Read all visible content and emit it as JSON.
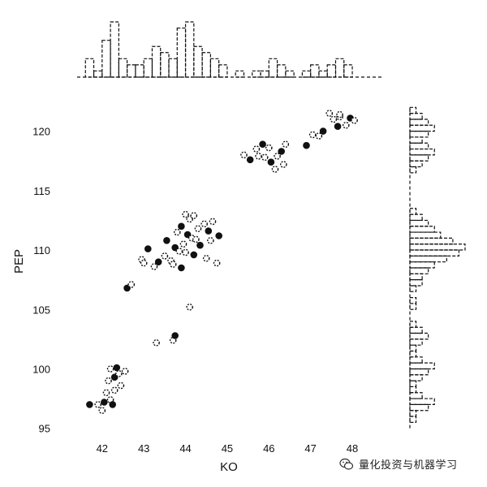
{
  "chart_data": {
    "type": "scatter",
    "title": "",
    "xlabel": "KO",
    "ylabel": "PEP",
    "xlim": [
      41.4,
      48.7
    ],
    "ylim": [
      94.5,
      122.5
    ],
    "xticks": [
      42,
      43,
      44,
      45,
      46,
      47,
      48
    ],
    "yticks": [
      95,
      100,
      105,
      110,
      115,
      120
    ],
    "grid": false,
    "points": [
      [
        41.7,
        97.0
      ],
      [
        41.9,
        97.0
      ],
      [
        42.0,
        96.5
      ],
      [
        42.05,
        97.2
      ],
      [
        42.1,
        98.0
      ],
      [
        42.2,
        97.4
      ],
      [
        42.25,
        97.0
      ],
      [
        42.3,
        98.2
      ],
      [
        42.15,
        99.0
      ],
      [
        42.3,
        99.3
      ],
      [
        42.4,
        99.6
      ],
      [
        42.2,
        100.0
      ],
      [
        42.35,
        100.1
      ],
      [
        42.55,
        99.8
      ],
      [
        42.45,
        98.6
      ],
      [
        42.6,
        106.8
      ],
      [
        42.7,
        107.1
      ],
      [
        42.95,
        109.2
      ],
      [
        43.1,
        110.1
      ],
      [
        43.0,
        108.9
      ],
      [
        43.25,
        108.6
      ],
      [
        43.35,
        109.0
      ],
      [
        43.3,
        102.2
      ],
      [
        43.7,
        102.4
      ],
      [
        43.75,
        102.8
      ],
      [
        44.1,
        105.2
      ],
      [
        43.5,
        109.5
      ],
      [
        43.55,
        110.8
      ],
      [
        43.65,
        109.1
      ],
      [
        43.7,
        108.8
      ],
      [
        43.75,
        110.2
      ],
      [
        43.8,
        111.5
      ],
      [
        43.85,
        109.9
      ],
      [
        43.9,
        112.0
      ],
      [
        43.95,
        110.5
      ],
      [
        44.0,
        109.8
      ],
      [
        44.05,
        111.3
      ],
      [
        44.1,
        112.6
      ],
      [
        44.15,
        111.0
      ],
      [
        44.2,
        109.6
      ],
      [
        44.25,
        110.9
      ],
      [
        44.3,
        111.8
      ],
      [
        44.35,
        110.4
      ],
      [
        44.45,
        112.2
      ],
      [
        44.5,
        109.3
      ],
      [
        44.55,
        111.6
      ],
      [
        44.65,
        112.4
      ],
      [
        44.75,
        108.9
      ],
      [
        44.8,
        111.2
      ],
      [
        44.0,
        113.0
      ],
      [
        44.2,
        112.9
      ],
      [
        43.9,
        108.5
      ],
      [
        44.6,
        110.8
      ],
      [
        45.4,
        118.0
      ],
      [
        45.55,
        117.6
      ],
      [
        45.7,
        118.5
      ],
      [
        45.75,
        117.9
      ],
      [
        45.85,
        118.9
      ],
      [
        45.9,
        117.8
      ],
      [
        46.0,
        118.6
      ],
      [
        46.05,
        117.4
      ],
      [
        46.15,
        116.8
      ],
      [
        46.2,
        117.9
      ],
      [
        46.3,
        118.3
      ],
      [
        46.35,
        117.2
      ],
      [
        46.4,
        118.9
      ],
      [
        46.9,
        118.8
      ],
      [
        47.05,
        119.7
      ],
      [
        47.2,
        119.6
      ],
      [
        47.3,
        120.0
      ],
      [
        47.45,
        121.5
      ],
      [
        47.55,
        121.0
      ],
      [
        47.65,
        120.4
      ],
      [
        47.7,
        121.2
      ],
      [
        47.85,
        120.5
      ],
      [
        47.95,
        121.1
      ],
      [
        48.05,
        120.9
      ],
      [
        47.7,
        121.4
      ]
    ],
    "marginal_x": {
      "bin_edges": [
        41.4,
        41.6,
        41.8,
        42.0,
        42.2,
        42.4,
        42.6,
        42.8,
        43.0,
        43.2,
        43.4,
        43.6,
        43.8,
        44.0,
        44.2,
        44.4,
        44.6,
        44.8,
        45.0,
        45.2,
        45.4,
        45.6,
        45.8,
        46.0,
        46.2,
        46.4,
        46.6,
        46.8,
        47.0,
        47.2,
        47.4,
        47.6,
        47.8,
        48.0,
        48.2
      ],
      "counts": [
        0,
        3,
        1,
        6,
        9,
        3,
        2,
        2,
        3,
        5,
        4,
        3,
        8,
        9,
        5,
        4,
        3,
        2,
        0,
        1,
        0,
        1,
        1,
        3,
        2,
        1,
        0,
        1,
        2,
        1,
        2,
        3,
        2,
        0
      ]
    },
    "marginal_y": {
      "bin_edges": [
        95,
        95.5,
        96,
        96.5,
        97,
        97.5,
        98,
        98.5,
        99,
        99.5,
        100,
        100.5,
        101,
        101.5,
        102,
        102.5,
        103,
        103.5,
        104,
        104.5,
        105,
        105.5,
        106,
        106.5,
        107,
        107.5,
        108,
        108.5,
        109,
        109.5,
        110,
        110.5,
        111,
        111.5,
        112,
        112.5,
        113,
        113.5,
        114,
        114.5,
        115,
        115.5,
        116,
        116.5,
        117,
        117.5,
        118,
        118.5,
        119,
        119.5,
        120,
        120.5,
        121,
        121.5,
        122
      ],
      "counts": [
        0,
        1,
        1,
        3,
        4,
        2,
        1,
        1,
        2,
        3,
        4,
        2,
        1,
        1,
        2,
        3,
        2,
        1,
        0,
        0,
        1,
        1,
        0,
        1,
        2,
        2,
        3,
        4,
        6,
        8,
        9,
        7,
        5,
        4,
        3,
        2,
        1,
        0,
        0,
        0,
        0,
        0,
        0,
        1,
        2,
        3,
        4,
        3,
        2,
        3,
        4,
        3,
        2,
        1
      ]
    },
    "colors": {
      "marker_fill": "#111111",
      "bar_edge": "#111111",
      "background": "#ffffff"
    }
  },
  "watermark": {
    "text": "量化投资与机器学习",
    "icon": "wechat-icon"
  }
}
